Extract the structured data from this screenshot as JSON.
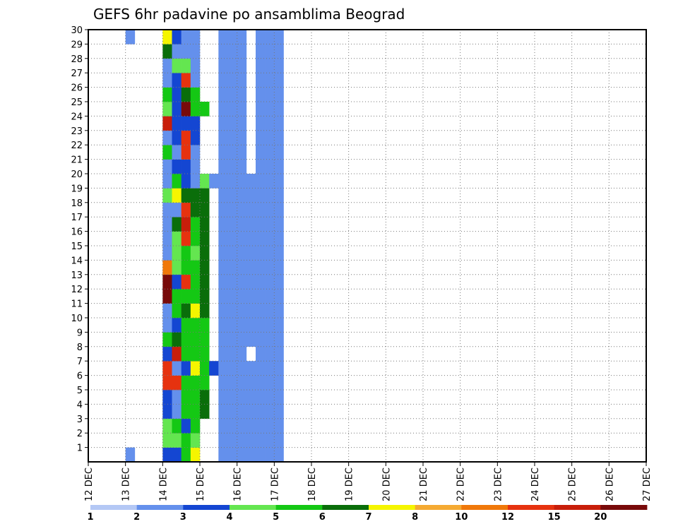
{
  "chart_data": {
    "type": "heatmap",
    "title": "GEFS 6hr padavine po ansamblima Beograd",
    "xlabel": "",
    "ylabel": "",
    "x_ticks": [
      "12 DEC",
      "13 DEC",
      "14 DEC",
      "15 DEC",
      "16 DEC",
      "17 DEC",
      "18 DEC",
      "19 DEC",
      "20 DEC",
      "21 DEC",
      "22 DEC",
      "23 DEC",
      "24 DEC",
      "25 DEC",
      "26 DEC",
      "27 DEC"
    ],
    "y_ticks": [
      "1",
      "2",
      "3",
      "4",
      "5",
      "6",
      "7",
      "8",
      "9",
      "10",
      "11",
      "12",
      "13",
      "14",
      "15",
      "16",
      "17",
      "18",
      "19",
      "20",
      "21",
      "22",
      "23",
      "24",
      "25",
      "26",
      "27",
      "28",
      "29",
      "30"
    ],
    "xlim": [
      0,
      60
    ],
    "ylim": [
      0,
      30
    ],
    "steps_per_day": 4,
    "grid": true,
    "colorbar": {
      "thresholds": [
        "1",
        "2",
        "3",
        "4",
        "5",
        "6",
        "7",
        "8",
        "10",
        "12",
        "15",
        "20"
      ],
      "colors": [
        "#b4c8f5",
        "#6490ec",
        "#1446d2",
        "#64e650",
        "#14c814",
        "#0a6e0a",
        "#f5f500",
        "#f5aa32",
        "#f0780a",
        "#e6320f",
        "#c81e0a",
        "#780a0a"
      ]
    },
    "cells": [
      [
        4,
        1,
        1
      ],
      [
        4,
        30,
        1
      ],
      [
        8,
        1,
        2
      ],
      [
        8,
        2,
        3
      ],
      [
        8,
        3,
        3
      ],
      [
        8,
        4,
        2
      ],
      [
        8,
        5,
        2
      ],
      [
        8,
        6,
        9
      ],
      [
        8,
        7,
        9
      ],
      [
        8,
        8,
        2
      ],
      [
        8,
        9,
        4
      ],
      [
        8,
        10,
        1
      ],
      [
        8,
        11,
        1
      ],
      [
        8,
        12,
        11
      ],
      [
        8,
        13,
        11
      ],
      [
        8,
        14,
        8
      ],
      [
        8,
        15,
        1
      ],
      [
        8,
        16,
        1
      ],
      [
        8,
        17,
        1
      ],
      [
        8,
        18,
        1
      ],
      [
        8,
        19,
        3
      ],
      [
        8,
        20,
        1
      ],
      [
        8,
        21,
        1
      ],
      [
        8,
        22,
        4
      ],
      [
        8,
        23,
        1
      ],
      [
        8,
        24,
        10
      ],
      [
        8,
        25,
        3
      ],
      [
        8,
        26,
        4
      ],
      [
        8,
        27,
        1
      ],
      [
        8,
        28,
        1
      ],
      [
        8,
        29,
        5
      ],
      [
        8,
        30,
        6
      ],
      [
        9,
        1,
        2
      ],
      [
        9,
        2,
        3
      ],
      [
        9,
        3,
        4
      ],
      [
        9,
        4,
        1
      ],
      [
        9,
        5,
        1
      ],
      [
        9,
        6,
        9
      ],
      [
        9,
        7,
        1
      ],
      [
        9,
        8,
        10
      ],
      [
        9,
        9,
        5
      ],
      [
        9,
        10,
        2
      ],
      [
        9,
        11,
        4
      ],
      [
        9,
        12,
        4
      ],
      [
        9,
        13,
        2
      ],
      [
        9,
        14,
        3
      ],
      [
        9,
        15,
        3
      ],
      [
        9,
        16,
        3
      ],
      [
        9,
        17,
        5
      ],
      [
        9,
        18,
        1
      ],
      [
        9,
        19,
        6
      ],
      [
        9,
        20,
        4
      ],
      [
        9,
        21,
        2
      ],
      [
        9,
        22,
        1
      ],
      [
        9,
        23,
        2
      ],
      [
        9,
        24,
        2
      ],
      [
        9,
        25,
        2
      ],
      [
        9,
        26,
        2
      ],
      [
        9,
        27,
        2
      ],
      [
        9,
        28,
        3
      ],
      [
        9,
        29,
        1
      ],
      [
        9,
        30,
        2
      ],
      [
        10,
        1,
        4
      ],
      [
        10,
        2,
        4
      ],
      [
        10,
        3,
        2
      ],
      [
        10,
        4,
        4
      ],
      [
        10,
        5,
        4
      ],
      [
        10,
        6,
        4
      ],
      [
        10,
        7,
        2
      ],
      [
        10,
        8,
        4
      ],
      [
        10,
        9,
        4
      ],
      [
        10,
        10,
        4
      ],
      [
        10,
        11,
        5
      ],
      [
        10,
        12,
        4
      ],
      [
        10,
        13,
        9
      ],
      [
        10,
        14,
        4
      ],
      [
        10,
        15,
        4
      ],
      [
        10,
        16,
        9
      ],
      [
        10,
        17,
        10
      ],
      [
        10,
        18,
        9
      ],
      [
        10,
        19,
        5
      ],
      [
        10,
        20,
        2
      ],
      [
        10,
        21,
        2
      ],
      [
        10,
        22,
        9
      ],
      [
        10,
        23,
        9
      ],
      [
        10,
        24,
        2
      ],
      [
        10,
        25,
        11
      ],
      [
        10,
        26,
        5
      ],
      [
        10,
        27,
        9
      ],
      [
        10,
        28,
        3
      ],
      [
        10,
        29,
        1
      ],
      [
        10,
        30,
        1
      ],
      [
        11,
        1,
        6
      ],
      [
        11,
        2,
        3
      ],
      [
        11,
        3,
        4
      ],
      [
        11,
        4,
        4
      ],
      [
        11,
        5,
        4
      ],
      [
        11,
        6,
        4
      ],
      [
        11,
        7,
        6
      ],
      [
        11,
        8,
        4
      ],
      [
        11,
        9,
        4
      ],
      [
        11,
        10,
        4
      ],
      [
        11,
        11,
        6
      ],
      [
        11,
        12,
        4
      ],
      [
        11,
        13,
        4
      ],
      [
        11,
        14,
        4
      ],
      [
        11,
        15,
        3
      ],
      [
        11,
        16,
        4
      ],
      [
        11,
        17,
        4
      ],
      [
        11,
        18,
        5
      ],
      [
        11,
        19,
        5
      ],
      [
        11,
        20,
        1
      ],
      [
        11,
        21,
        1
      ],
      [
        11,
        22,
        1
      ],
      [
        11,
        23,
        2
      ],
      [
        11,
        24,
        2
      ],
      [
        11,
        25,
        4
      ],
      [
        11,
        26,
        4
      ],
      [
        11,
        27,
        1
      ],
      [
        11,
        28,
        1
      ],
      [
        11,
        29,
        1
      ],
      [
        11,
        30,
        1
      ],
      [
        12,
        4,
        5
      ],
      [
        12,
        5,
        5
      ],
      [
        12,
        6,
        4
      ],
      [
        12,
        7,
        4
      ],
      [
        12,
        8,
        4
      ],
      [
        12,
        9,
        4
      ],
      [
        12,
        10,
        4
      ],
      [
        12,
        11,
        5
      ],
      [
        12,
        12,
        5
      ],
      [
        12,
        13,
        5
      ],
      [
        12,
        14,
        5
      ],
      [
        12,
        15,
        5
      ],
      [
        12,
        16,
        5
      ],
      [
        12,
        17,
        5
      ],
      [
        12,
        18,
        5
      ],
      [
        12,
        19,
        5
      ],
      [
        12,
        20,
        3
      ],
      [
        12,
        25,
        4
      ],
      [
        13,
        7,
        2
      ],
      [
        13,
        20,
        1
      ],
      [
        17,
        1,
        1
      ],
      [
        17,
        2,
        1
      ],
      [
        17,
        3,
        1
      ],
      [
        17,
        4,
        1
      ],
      [
        17,
        5,
        1
      ],
      [
        17,
        6,
        1
      ],
      [
        17,
        7,
        1
      ],
      [
        17,
        9,
        1
      ],
      [
        17,
        10,
        1
      ],
      [
        17,
        11,
        1
      ],
      [
        17,
        12,
        1
      ],
      [
        17,
        13,
        1
      ],
      [
        17,
        14,
        1
      ],
      [
        17,
        15,
        1
      ],
      [
        17,
        16,
        1
      ],
      [
        17,
        17,
        1
      ],
      [
        17,
        18,
        1
      ],
      [
        17,
        19,
        1
      ],
      [
        17,
        20,
        1
      ],
      [
        16,
        1,
        1
      ],
      [
        16,
        2,
        1
      ],
      [
        16,
        3,
        1
      ],
      [
        16,
        4,
        1
      ],
      [
        16,
        5,
        1
      ],
      [
        16,
        6,
        1
      ],
      [
        16,
        7,
        1
      ],
      [
        16,
        8,
        1
      ],
      [
        16,
        9,
        1
      ],
      [
        16,
        10,
        1
      ],
      [
        16,
        11,
        1
      ],
      [
        16,
        12,
        1
      ],
      [
        16,
        13,
        1
      ],
      [
        16,
        14,
        1
      ],
      [
        16,
        15,
        1
      ],
      [
        16,
        16,
        1
      ],
      [
        16,
        17,
        1
      ],
      [
        16,
        18,
        1
      ],
      [
        16,
        19,
        1
      ],
      [
        16,
        20,
        1
      ],
      [
        16,
        21,
        1
      ],
      [
        16,
        22,
        1
      ],
      [
        16,
        23,
        1
      ],
      [
        16,
        24,
        1
      ],
      [
        16,
        25,
        1
      ],
      [
        16,
        26,
        1
      ],
      [
        16,
        27,
        1
      ],
      [
        16,
        28,
        1
      ],
      [
        16,
        29,
        1
      ],
      [
        16,
        30,
        1
      ],
      [
        14,
        1,
        1
      ],
      [
        14,
        2,
        1
      ],
      [
        14,
        3,
        1
      ],
      [
        14,
        4,
        1
      ],
      [
        14,
        5,
        1
      ],
      [
        14,
        6,
        1
      ],
      [
        14,
        7,
        1
      ],
      [
        14,
        8,
        1
      ],
      [
        14,
        9,
        1
      ],
      [
        14,
        10,
        1
      ],
      [
        14,
        11,
        1
      ],
      [
        14,
        12,
        1
      ],
      [
        14,
        13,
        1
      ],
      [
        14,
        14,
        1
      ],
      [
        14,
        15,
        1
      ],
      [
        14,
        16,
        1
      ],
      [
        14,
        17,
        1
      ],
      [
        14,
        18,
        1
      ],
      [
        14,
        19,
        1
      ],
      [
        14,
        20,
        1
      ],
      [
        14,
        21,
        1
      ],
      [
        14,
        22,
        1
      ],
      [
        14,
        23,
        1
      ],
      [
        14,
        24,
        1
      ],
      [
        14,
        25,
        1
      ],
      [
        14,
        26,
        1
      ],
      [
        14,
        27,
        1
      ],
      [
        14,
        28,
        1
      ],
      [
        14,
        29,
        1
      ],
      [
        14,
        30,
        1
      ],
      [
        15,
        1,
        1
      ],
      [
        15,
        2,
        1
      ],
      [
        15,
        3,
        1
      ],
      [
        15,
        4,
        1
      ],
      [
        15,
        5,
        1
      ],
      [
        15,
        6,
        1
      ],
      [
        15,
        7,
        1
      ],
      [
        15,
        8,
        1
      ],
      [
        15,
        9,
        1
      ],
      [
        15,
        10,
        1
      ],
      [
        15,
        11,
        1
      ],
      [
        15,
        12,
        1
      ],
      [
        15,
        13,
        1
      ],
      [
        15,
        14,
        1
      ],
      [
        15,
        15,
        1
      ],
      [
        15,
        16,
        1
      ],
      [
        15,
        17,
        1
      ],
      [
        15,
        18,
        1
      ],
      [
        15,
        19,
        1
      ],
      [
        15,
        20,
        1
      ],
      [
        15,
        21,
        1
      ],
      [
        15,
        22,
        1
      ],
      [
        15,
        23,
        1
      ],
      [
        15,
        24,
        1
      ],
      [
        15,
        25,
        1
      ],
      [
        15,
        26,
        1
      ],
      [
        15,
        27,
        1
      ],
      [
        15,
        28,
        1
      ],
      [
        15,
        29,
        1
      ],
      [
        15,
        30,
        1
      ],
      [
        18,
        1,
        1
      ],
      [
        18,
        2,
        1
      ],
      [
        18,
        3,
        1
      ],
      [
        18,
        4,
        1
      ],
      [
        18,
        5,
        1
      ],
      [
        18,
        6,
        1
      ],
      [
        18,
        7,
        1
      ],
      [
        18,
        8,
        1
      ],
      [
        18,
        9,
        1
      ],
      [
        18,
        10,
        1
      ],
      [
        18,
        11,
        1
      ],
      [
        18,
        12,
        1
      ],
      [
        18,
        13,
        1
      ],
      [
        18,
        14,
        1
      ],
      [
        18,
        15,
        1
      ],
      [
        18,
        16,
        1
      ],
      [
        18,
        17,
        1
      ],
      [
        18,
        18,
        1
      ],
      [
        18,
        19,
        1
      ],
      [
        18,
        20,
        1
      ],
      [
        18,
        21,
        1
      ],
      [
        18,
        22,
        1
      ],
      [
        18,
        23,
        1
      ],
      [
        18,
        24,
        1
      ],
      [
        18,
        25,
        1
      ],
      [
        18,
        26,
        1
      ],
      [
        18,
        27,
        1
      ],
      [
        18,
        28,
        1
      ],
      [
        18,
        29,
        1
      ],
      [
        18,
        30,
        1
      ],
      [
        19,
        1,
        1
      ],
      [
        19,
        2,
        1
      ],
      [
        19,
        3,
        1
      ],
      [
        19,
        4,
        1
      ],
      [
        19,
        5,
        1
      ],
      [
        19,
        6,
        1
      ],
      [
        19,
        7,
        1
      ],
      [
        19,
        8,
        1
      ],
      [
        19,
        9,
        1
      ],
      [
        19,
        10,
        1
      ],
      [
        19,
        11,
        1
      ],
      [
        19,
        12,
        1
      ],
      [
        19,
        13,
        1
      ],
      [
        19,
        14,
        1
      ],
      [
        19,
        15,
        1
      ],
      [
        19,
        16,
        1
      ],
      [
        19,
        17,
        1
      ],
      [
        19,
        18,
        1
      ],
      [
        19,
        19,
        1
      ],
      [
        19,
        20,
        1
      ],
      [
        19,
        21,
        1
      ],
      [
        19,
        22,
        1
      ],
      [
        19,
        23,
        1
      ],
      [
        19,
        24,
        1
      ],
      [
        19,
        25,
        1
      ],
      [
        19,
        26,
        1
      ],
      [
        19,
        27,
        1
      ],
      [
        19,
        28,
        1
      ],
      [
        19,
        29,
        1
      ],
      [
        19,
        30,
        1
      ],
      [
        20,
        1,
        1
      ],
      [
        20,
        2,
        1
      ],
      [
        20,
        3,
        1
      ],
      [
        20,
        4,
        1
      ],
      [
        20,
        5,
        1
      ],
      [
        20,
        6,
        1
      ],
      [
        20,
        7,
        1
      ],
      [
        20,
        8,
        1
      ],
      [
        20,
        9,
        1
      ],
      [
        20,
        10,
        1
      ],
      [
        20,
        11,
        1
      ],
      [
        20,
        12,
        1
      ],
      [
        20,
        13,
        1
      ],
      [
        20,
        14,
        1
      ],
      [
        20,
        15,
        1
      ],
      [
        20,
        16,
        1
      ],
      [
        20,
        17,
        1
      ],
      [
        20,
        18,
        1
      ],
      [
        20,
        19,
        1
      ],
      [
        20,
        20,
        1
      ],
      [
        20,
        21,
        1
      ],
      [
        20,
        22,
        1
      ],
      [
        20,
        23,
        1
      ],
      [
        20,
        24,
        1
      ],
      [
        20,
        25,
        1
      ],
      [
        20,
        26,
        1
      ],
      [
        20,
        27,
        1
      ],
      [
        20,
        28,
        1
      ],
      [
        20,
        29,
        1
      ],
      [
        20,
        30,
        1
      ]
    ]
  }
}
